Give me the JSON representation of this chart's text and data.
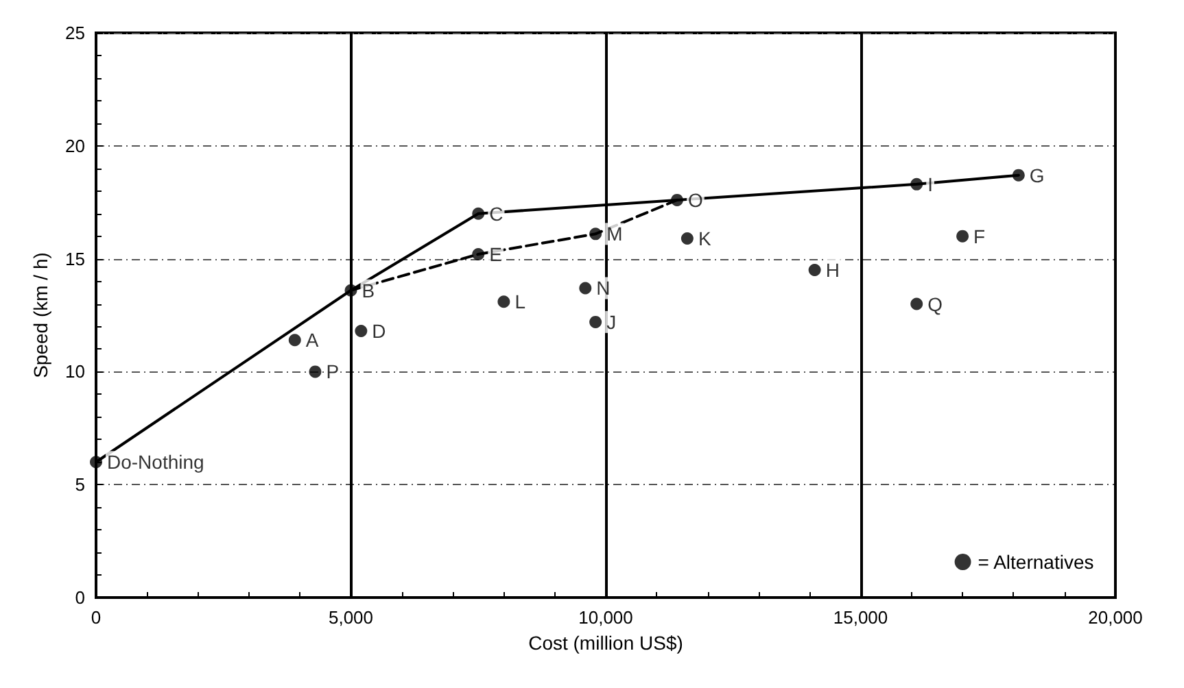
{
  "chart_data": {
    "type": "scatter",
    "xlabel": "Cost (million US$)",
    "ylabel": "Speed (km / h)",
    "xlim": [
      0,
      20000
    ],
    "ylim": [
      0,
      25
    ],
    "xticks": [
      0,
      {
        "value": 5000,
        "label": "5,000"
      },
      {
        "value": 10000,
        "label": "10,000"
      },
      {
        "value": 15000,
        "label": "15,000"
      },
      {
        "value": 20000,
        "label": "20,000"
      }
    ],
    "yticks": [
      0,
      5,
      10,
      15,
      20,
      25
    ],
    "grid": true,
    "legend": "bottom right",
    "series": [
      {
        "type": "line",
        "color": "#000000",
        "line_style": "solid",
        "marker": "none",
        "x": [
          0,
          5000,
          7500,
          11400,
          16100,
          18100
        ],
        "values": [
          6,
          13.6,
          17,
          17.6,
          18.3,
          18.7
        ]
      },
      {
        "type": "line",
        "color": "#000000",
        "line_style": "dashed",
        "marker": "none",
        "x": [
          5000,
          7500,
          9800,
          11400
        ],
        "values": [
          13.6,
          15.2,
          16.1,
          17.6
        ]
      },
      {
        "name": "= Alternatives",
        "color": "#000000",
        "marker": "circle",
        "x": [
          0,
          3900,
          4300,
          5200,
          5000,
          7500,
          7500,
          8000,
          9800,
          9600,
          9800,
          11400,
          11600,
          14100,
          16100,
          18100,
          17000,
          16100
        ],
        "values": [
          6,
          11.4,
          10,
          11.8,
          13.6,
          17,
          15.2,
          13.1,
          16.1,
          13.7,
          12.2,
          17.6,
          15.9,
          14.5,
          18.3,
          18.7,
          16,
          13
        ]
      }
    ],
    "annotations": [
      {
        "text": "Do-Nothing",
        "x": 0,
        "y": 6
      },
      {
        "text": "A",
        "x": 3900,
        "y": 11.4
      },
      {
        "text": "P",
        "x": 4300,
        "y": 10
      },
      {
        "text": "D",
        "x": 5200,
        "y": 11.8
      },
      {
        "text": "B",
        "x": 5000,
        "y": 13.6
      },
      {
        "text": "C",
        "x": 7500,
        "y": 17
      },
      {
        "text": "E",
        "x": 7500,
        "y": 15.2
      },
      {
        "text": "L",
        "x": 8000,
        "y": 13.1
      },
      {
        "text": "M",
        "x": 9800,
        "y": 16.1
      },
      {
        "text": "N",
        "x": 9600,
        "y": 13.7
      },
      {
        "text": "J",
        "x": 9800,
        "y": 12.2
      },
      {
        "text": "O",
        "x": 11400,
        "y": 17.6
      },
      {
        "text": "K",
        "x": 11600,
        "y": 15.9
      },
      {
        "text": "H",
        "x": 14100,
        "y": 14.5
      },
      {
        "text": "I",
        "x": 16100,
        "y": 18.3
      },
      {
        "text": "G",
        "x": 18100,
        "y": 18.7
      },
      {
        "text": "F",
        "x": 17000,
        "y": 16
      },
      {
        "text": "Q",
        "x": 16100,
        "y": 13
      }
    ]
  }
}
